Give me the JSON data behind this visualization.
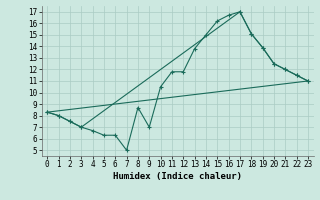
{
  "xlabel": "Humidex (Indice chaleur)",
  "xlim_min": -0.5,
  "xlim_max": 23.5,
  "ylim_min": 4.5,
  "ylim_max": 17.5,
  "xticks": [
    0,
    1,
    2,
    3,
    4,
    5,
    6,
    7,
    8,
    9,
    10,
    11,
    12,
    13,
    14,
    15,
    16,
    17,
    18,
    19,
    20,
    21,
    22,
    23
  ],
  "yticks": [
    5,
    6,
    7,
    8,
    9,
    10,
    11,
    12,
    13,
    14,
    15,
    16,
    17
  ],
  "background_color": "#cce8e0",
  "grid_color": "#aaccc4",
  "line_color": "#1a6b5a",
  "line1_x": [
    0,
    1,
    2,
    3,
    4,
    5,
    6,
    7,
    8,
    9,
    10,
    11,
    12,
    13,
    14,
    15,
    16,
    17,
    18,
    19,
    20,
    21,
    22,
    23
  ],
  "line1_y": [
    8.3,
    8.0,
    7.5,
    7.0,
    6.7,
    6.3,
    6.3,
    5.0,
    8.7,
    7.0,
    10.5,
    11.8,
    11.8,
    13.8,
    15.0,
    16.2,
    16.7,
    17.0,
    15.1,
    13.9,
    12.5,
    12.0,
    11.5,
    11.0
  ],
  "line2_x": [
    0,
    1,
    2,
    3,
    17,
    18,
    19,
    20,
    21,
    22,
    23
  ],
  "line2_y": [
    8.3,
    8.0,
    7.5,
    7.0,
    17.0,
    15.1,
    13.9,
    12.5,
    12.0,
    11.5,
    11.0
  ],
  "line3_x": [
    0,
    23
  ],
  "line3_y": [
    8.3,
    11.0
  ],
  "tick_fontsize": 5.5,
  "xlabel_fontsize": 6.5,
  "marker_size": 2.5,
  "line_width": 0.8
}
